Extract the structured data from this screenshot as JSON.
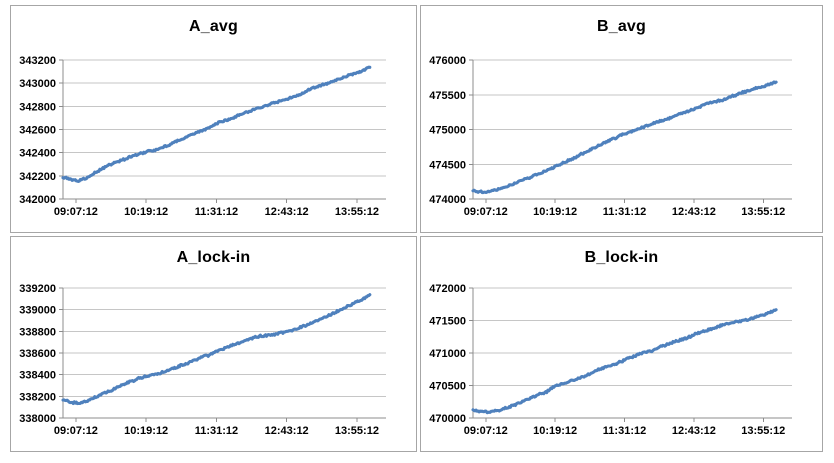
{
  "colors": {
    "series_line": "#4f81bd",
    "gridline": "#c6c6c6",
    "axis_line": "#8c8c8c",
    "panel_border": "#a6a6a6",
    "text": "#000000",
    "background": "#ffffff"
  },
  "chart_data": [
    {
      "type": "line",
      "title": "A_avg",
      "xlabel": "",
      "ylabel": "",
      "ylim": [
        342000,
        343200
      ],
      "y_ticks": [
        342000,
        342200,
        342400,
        342600,
        342800,
        343000,
        343200
      ],
      "x_ticks": [
        "09:07:12",
        "10:19:12",
        "11:31:12",
        "12:43:12",
        "13:55:12"
      ],
      "grid": true,
      "legend": false,
      "series": [
        {
          "name": "A_avg",
          "points": [
            [
              0.0,
              342190
            ],
            [
              0.02,
              342172
            ],
            [
              0.045,
              342158
            ],
            [
              0.07,
              342175
            ],
            [
              0.1,
              342225
            ],
            [
              0.14,
              342280
            ],
            [
              0.18,
              342330
            ],
            [
              0.22,
              342375
            ],
            [
              0.26,
              342410
            ],
            [
              0.295,
              342425
            ],
            [
              0.33,
              342465
            ],
            [
              0.37,
              342515
            ],
            [
              0.41,
              342560
            ],
            [
              0.45,
              342610
            ],
            [
              0.481,
              342650
            ],
            [
              0.53,
              342700
            ],
            [
              0.57,
              342745
            ],
            [
              0.61,
              342785
            ],
            [
              0.65,
              342830
            ],
            [
              0.699,
              342870
            ],
            [
              0.73,
              342905
            ],
            [
              0.77,
              342950
            ],
            [
              0.81,
              342990
            ],
            [
              0.85,
              343040
            ],
            [
              0.89,
              343080
            ],
            [
              0.92,
              343110
            ],
            [
              0.95,
              343145
            ]
          ]
        }
      ]
    },
    {
      "type": "line",
      "title": "B_avg",
      "xlabel": "",
      "ylabel": "",
      "ylim": [
        474000,
        476000
      ],
      "y_ticks": [
        474000,
        474500,
        475000,
        475500,
        476000
      ],
      "x_ticks": [
        "09:07:12",
        "10:19:12",
        "11:31:12",
        "12:43:12",
        "13:55:12"
      ],
      "grid": true,
      "legend": false,
      "series": [
        {
          "name": "B_avg",
          "points": [
            [
              0.0,
              474125
            ],
            [
              0.02,
              474108
            ],
            [
              0.05,
              474098
            ],
            [
              0.08,
              474125
            ],
            [
              0.11,
              474170
            ],
            [
              0.15,
              474240
            ],
            [
              0.19,
              474320
            ],
            [
              0.23,
              474400
            ],
            [
              0.263,
              474465
            ],
            [
              0.3,
              474540
            ],
            [
              0.34,
              474630
            ],
            [
              0.38,
              474720
            ],
            [
              0.42,
              474810
            ],
            [
              0.45,
              474870
            ],
            [
              0.481,
              474935
            ],
            [
              0.52,
              475000
            ],
            [
              0.56,
              475070
            ],
            [
              0.6,
              475140
            ],
            [
              0.64,
              475210
            ],
            [
              0.699,
              475290
            ],
            [
              0.74,
              475360
            ],
            [
              0.78,
              475420
            ],
            [
              0.82,
              475480
            ],
            [
              0.86,
              475540
            ],
            [
              0.917,
              475615
            ],
            [
              0.95,
              475665
            ]
          ]
        }
      ]
    },
    {
      "type": "line",
      "title": "A_lock-in",
      "xlabel": "",
      "ylabel": "",
      "ylim": [
        338000,
        339200
      ],
      "y_ticks": [
        338000,
        338200,
        338400,
        338600,
        338800,
        339000,
        339200
      ],
      "x_ticks": [
        "09:07:12",
        "10:19:12",
        "11:31:12",
        "12:43:12",
        "13:55:12"
      ],
      "grid": true,
      "legend": false,
      "series": [
        {
          "name": "A_lock-in",
          "points": [
            [
              0.0,
              338168
            ],
            [
              0.02,
              338155
            ],
            [
              0.045,
              338148
            ],
            [
              0.07,
              338162
            ],
            [
              0.1,
              338200
            ],
            [
              0.14,
              338250
            ],
            [
              0.18,
              338300
            ],
            [
              0.22,
              338350
            ],
            [
              0.263,
              338398
            ],
            [
              0.3,
              338420
            ],
            [
              0.34,
              338460
            ],
            [
              0.38,
              338510
            ],
            [
              0.42,
              338555
            ],
            [
              0.45,
              338580
            ],
            [
              0.481,
              338625
            ],
            [
              0.52,
              338660
            ],
            [
              0.56,
              338700
            ],
            [
              0.6,
              338740
            ],
            [
              0.64,
              338765
            ],
            [
              0.699,
              338795
            ],
            [
              0.74,
              338840
            ],
            [
              0.78,
              338880
            ],
            [
              0.82,
              338930
            ],
            [
              0.86,
              338990
            ],
            [
              0.917,
              339070
            ],
            [
              0.95,
              339130
            ]
          ]
        }
      ]
    },
    {
      "type": "line",
      "title": "B_lock-in",
      "xlabel": "",
      "ylabel": "",
      "ylim": [
        470000,
        472000
      ],
      "y_ticks": [
        470000,
        470500,
        471000,
        471500,
        472000
      ],
      "x_ticks": [
        "09:07:12",
        "10:19:12",
        "11:31:12",
        "12:43:12",
        "13:55:12"
      ],
      "grid": true,
      "legend": false,
      "series": [
        {
          "name": "B_lock-in",
          "points": [
            [
              0.0,
              470130
            ],
            [
              0.02,
              470112
            ],
            [
              0.05,
              470100
            ],
            [
              0.08,
              470125
            ],
            [
              0.11,
              470170
            ],
            [
              0.15,
              470240
            ],
            [
              0.19,
              470320
            ],
            [
              0.23,
              470410
            ],
            [
              0.263,
              470520
            ],
            [
              0.3,
              470570
            ],
            [
              0.34,
              470640
            ],
            [
              0.38,
              470710
            ],
            [
              0.42,
              470780
            ],
            [
              0.45,
              470830
            ],
            [
              0.481,
              470890
            ],
            [
              0.52,
              470960
            ],
            [
              0.56,
              471030
            ],
            [
              0.6,
              471110
            ],
            [
              0.64,
              471190
            ],
            [
              0.699,
              471310
            ],
            [
              0.74,
              471380
            ],
            [
              0.78,
              471440
            ],
            [
              0.81,
              471470
            ],
            [
              0.84,
              471490
            ],
            [
              0.88,
              471540
            ],
            [
              0.917,
              471600
            ],
            [
              0.95,
              471670
            ]
          ]
        }
      ]
    }
  ]
}
